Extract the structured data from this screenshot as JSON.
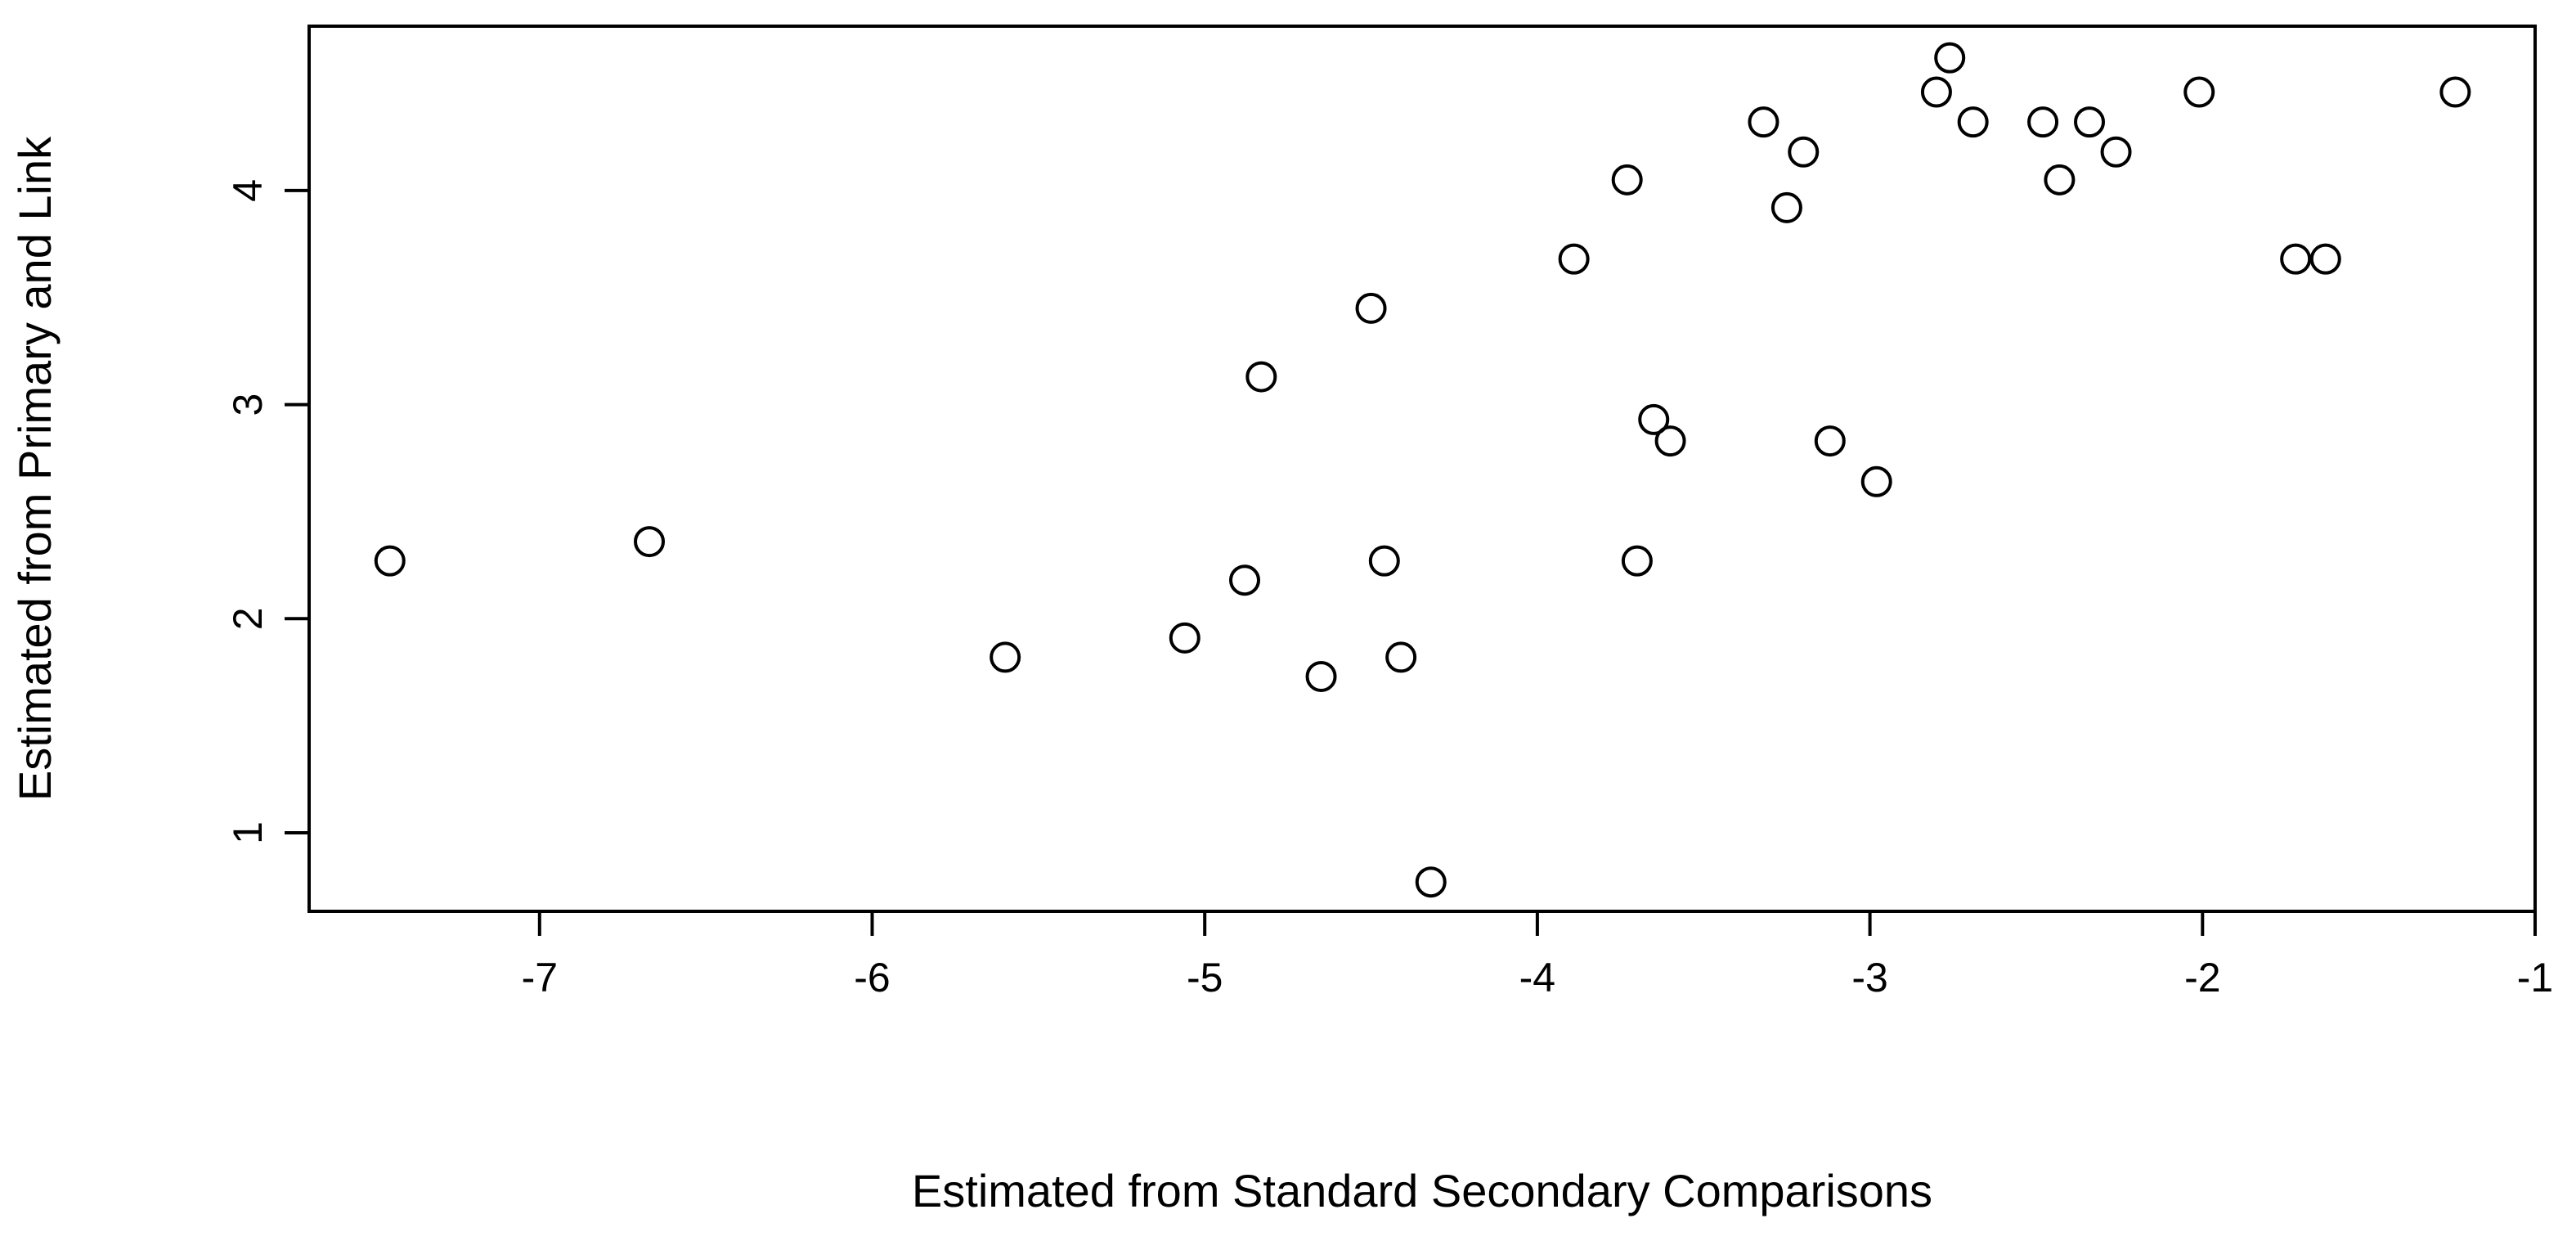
{
  "chart_data": {
    "type": "scatter",
    "title": "",
    "xlabel": "Estimated from Standard Secondary Comparisons",
    "ylabel": "Estimated from Primary and Link",
    "xlim": [
      -7.7,
      -1.0
    ],
    "ylim": [
      0.7,
      4.8
    ],
    "x_ticks": [
      -7,
      -6,
      -5,
      -4,
      -3,
      -2,
      -1
    ],
    "x_tick_labels": [
      "-7",
      "-6",
      "-5",
      "-4",
      "-3",
      "-2",
      "-1"
    ],
    "y_ticks": [
      1,
      2,
      3,
      4
    ],
    "y_tick_labels": [
      "1",
      "2",
      "3",
      "4"
    ],
    "grid": false,
    "marker": "open-circle",
    "points": [
      {
        "x": -7.45,
        "y": 2.27
      },
      {
        "x": -6.67,
        "y": 2.36
      },
      {
        "x": -5.6,
        "y": 1.82
      },
      {
        "x": -5.06,
        "y": 1.91
      },
      {
        "x": -4.88,
        "y": 2.18
      },
      {
        "x": -4.83,
        "y": 3.13
      },
      {
        "x": -4.65,
        "y": 1.73
      },
      {
        "x": -4.5,
        "y": 3.45
      },
      {
        "x": -4.46,
        "y": 2.27
      },
      {
        "x": -4.41,
        "y": 1.82
      },
      {
        "x": -4.32,
        "y": 0.77
      },
      {
        "x": -3.89,
        "y": 3.68
      },
      {
        "x": -3.73,
        "y": 4.05
      },
      {
        "x": -3.7,
        "y": 2.27
      },
      {
        "x": -3.65,
        "y": 2.93
      },
      {
        "x": -3.6,
        "y": 2.83
      },
      {
        "x": -3.32,
        "y": 4.32
      },
      {
        "x": -3.25,
        "y": 3.92
      },
      {
        "x": -3.2,
        "y": 4.18
      },
      {
        "x": -3.12,
        "y": 2.83
      },
      {
        "x": -2.98,
        "y": 2.64
      },
      {
        "x": -2.8,
        "y": 4.46
      },
      {
        "x": -2.76,
        "y": 4.62
      },
      {
        "x": -2.69,
        "y": 4.32
      },
      {
        "x": -2.48,
        "y": 4.32
      },
      {
        "x": -2.43,
        "y": 4.05
      },
      {
        "x": -2.34,
        "y": 4.32
      },
      {
        "x": -2.26,
        "y": 4.18
      },
      {
        "x": -2.01,
        "y": 4.46
      },
      {
        "x": -1.72,
        "y": 3.68
      },
      {
        "x": -1.63,
        "y": 3.68
      },
      {
        "x": -1.24,
        "y": 4.46
      }
    ]
  }
}
